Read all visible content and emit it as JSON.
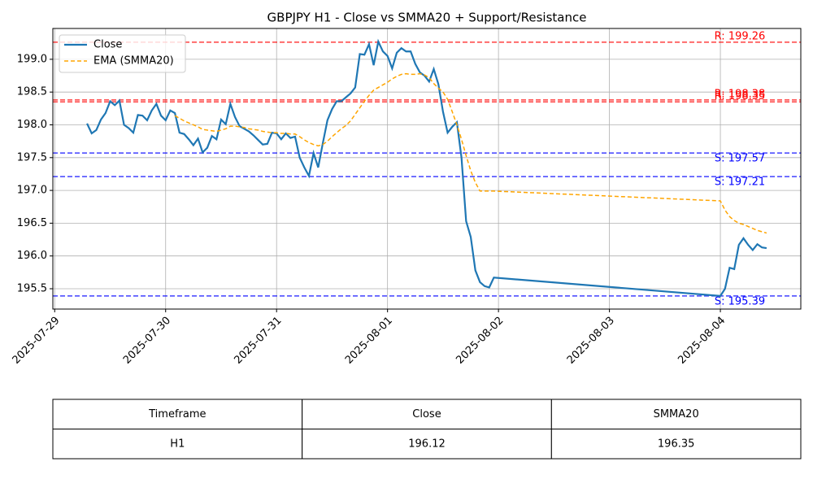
{
  "chart_data": {
    "type": "line",
    "title": "GBPJPY H1 - Close vs SMMA20 + Support/Resistance",
    "xlim": [
      -0.4,
      161.4
    ],
    "xticks": [
      {
        "value": 0,
        "label": "2025-07-29"
      },
      {
        "value": 24,
        "label": "2025-07-30"
      },
      {
        "value": 48,
        "label": "2025-07-31"
      },
      {
        "value": 72,
        "label": "2025-08-01"
      },
      {
        "value": 96,
        "label": "2025-08-02"
      },
      {
        "value": 120,
        "label": "2025-08-03"
      },
      {
        "value": 144,
        "label": "2025-08-04"
      }
    ],
    "ylim": [
      195.19,
      199.47
    ],
    "yticks": [
      195.5,
      {
        "value": 196.0,
        "label": "196.0"
      },
      196.5,
      {
        "value": 197.0,
        "label": "197.0"
      },
      197.5,
      {
        "value": 198.0,
        "label": "198.0"
      },
      198.5,
      {
        "value": 199.0,
        "label": "199.0"
      }
    ],
    "grid": true,
    "legend": "upper left",
    "series": [
      {
        "name": "Close",
        "color": "#1f77b4",
        "dash": false,
        "x": [
          7,
          8,
          9,
          10,
          11,
          12,
          13,
          14,
          15,
          16,
          17,
          18,
          19,
          20,
          21,
          22,
          23,
          24,
          25,
          26,
          27,
          28,
          29,
          30,
          31,
          32,
          33,
          34,
          35,
          36,
          37,
          38,
          39,
          40,
          41,
          42,
          43,
          44,
          45,
          46,
          47,
          48,
          49,
          50,
          51,
          52,
          53,
          54,
          55,
          56,
          57,
          58,
          59,
          60,
          61,
          62,
          63,
          64,
          65,
          66,
          67,
          68,
          69,
          70,
          71,
          72,
          73,
          74,
          75,
          76,
          77,
          78,
          79,
          80,
          81,
          82,
          83,
          84,
          85,
          86,
          87,
          88,
          89,
          90,
          91,
          92,
          93,
          94,
          95,
          144,
          145,
          146,
          147,
          148,
          149,
          150,
          151,
          152,
          153,
          154
        ],
        "values": [
          198.02,
          197.87,
          197.92,
          198.08,
          198.18,
          198.36,
          198.3,
          198.37,
          198.0,
          197.95,
          197.88,
          198.15,
          198.14,
          198.07,
          198.22,
          198.32,
          198.14,
          198.07,
          198.22,
          198.18,
          197.88,
          197.86,
          197.78,
          197.69,
          197.79,
          197.58,
          197.65,
          197.83,
          197.78,
          198.08,
          198.01,
          198.32,
          198.12,
          197.98,
          197.94,
          197.9,
          197.84,
          197.77,
          197.7,
          197.71,
          197.88,
          197.87,
          197.78,
          197.87,
          197.8,
          197.82,
          197.5,
          197.35,
          197.22,
          197.57,
          197.35,
          197.72,
          198.07,
          198.24,
          198.36,
          198.36,
          198.42,
          198.48,
          198.57,
          199.08,
          199.07,
          199.23,
          198.91,
          199.27,
          199.12,
          199.05,
          198.86,
          199.1,
          199.17,
          199.12,
          199.12,
          198.93,
          198.8,
          198.75,
          198.66,
          198.85,
          198.62,
          198.2,
          197.88,
          197.97,
          198.04,
          197.5,
          196.53,
          196.29,
          195.78,
          195.6,
          195.54,
          195.52,
          195.67,
          195.39,
          195.5,
          195.82,
          195.8,
          196.17,
          196.27,
          196.17,
          196.09,
          196.18,
          196.13,
          196.12
        ]
      },
      {
        "name": "EMA (SMMA20)",
        "color": "#ffa500",
        "dash": true,
        "x": [
          26,
          27,
          28,
          29,
          30,
          31,
          32,
          33,
          34,
          35,
          36,
          37,
          38,
          39,
          40,
          41,
          42,
          43,
          44,
          45,
          46,
          47,
          48,
          49,
          50,
          51,
          52,
          53,
          54,
          55,
          56,
          57,
          58,
          59,
          60,
          61,
          62,
          63,
          64,
          65,
          66,
          67,
          68,
          69,
          70,
          71,
          72,
          73,
          74,
          75,
          76,
          77,
          78,
          79,
          80,
          81,
          82,
          83,
          84,
          85,
          86,
          87,
          88,
          89,
          90,
          91,
          92,
          93,
          94,
          95,
          144,
          145,
          146,
          147,
          148,
          149,
          150,
          151,
          152,
          153,
          154
        ],
        "values": [
          198.14,
          198.1,
          198.06,
          198.03,
          198.0,
          197.97,
          197.93,
          197.92,
          197.91,
          197.9,
          197.92,
          197.94,
          197.98,
          197.98,
          197.97,
          197.96,
          197.94,
          197.93,
          197.92,
          197.9,
          197.89,
          197.88,
          197.88,
          197.87,
          197.87,
          197.86,
          197.86,
          197.82,
          197.77,
          197.73,
          197.7,
          197.68,
          197.7,
          197.75,
          197.82,
          197.88,
          197.94,
          197.99,
          198.06,
          198.16,
          198.26,
          198.36,
          198.45,
          198.53,
          198.57,
          198.61,
          198.65,
          198.7,
          198.74,
          198.77,
          198.78,
          198.77,
          198.77,
          198.78,
          198.76,
          198.72,
          198.63,
          198.56,
          198.5,
          198.39,
          198.2,
          198.0,
          197.78,
          197.53,
          197.3,
          197.12,
          196.99,
          196.99,
          196.99,
          196.99,
          196.84,
          196.7,
          196.6,
          196.54,
          196.5,
          196.48,
          196.45,
          196.42,
          196.39,
          196.37,
          196.35
        ]
      }
    ],
    "levels": [
      {
        "value": 199.26,
        "label": "R: 199.26",
        "color": "#ff0000"
      },
      {
        "value": 198.38,
        "label": "R: 198.38",
        "color": "#ff0000"
      },
      {
        "value": 198.35,
        "label": "R: 198.35",
        "color": "#ff0000"
      },
      {
        "value": 197.57,
        "label": "S: 197.57",
        "color": "#0000ff"
      },
      {
        "value": 197.21,
        "label": "S: 197.21",
        "color": "#0000ff"
      },
      {
        "value": 195.39,
        "label": "S: 195.39",
        "color": "#0000ff"
      }
    ]
  },
  "table": {
    "columns": [
      "Timeframe",
      "Close",
      "SMMA20"
    ],
    "rows": [
      [
        "H1",
        "196.12",
        "196.35"
      ]
    ]
  }
}
